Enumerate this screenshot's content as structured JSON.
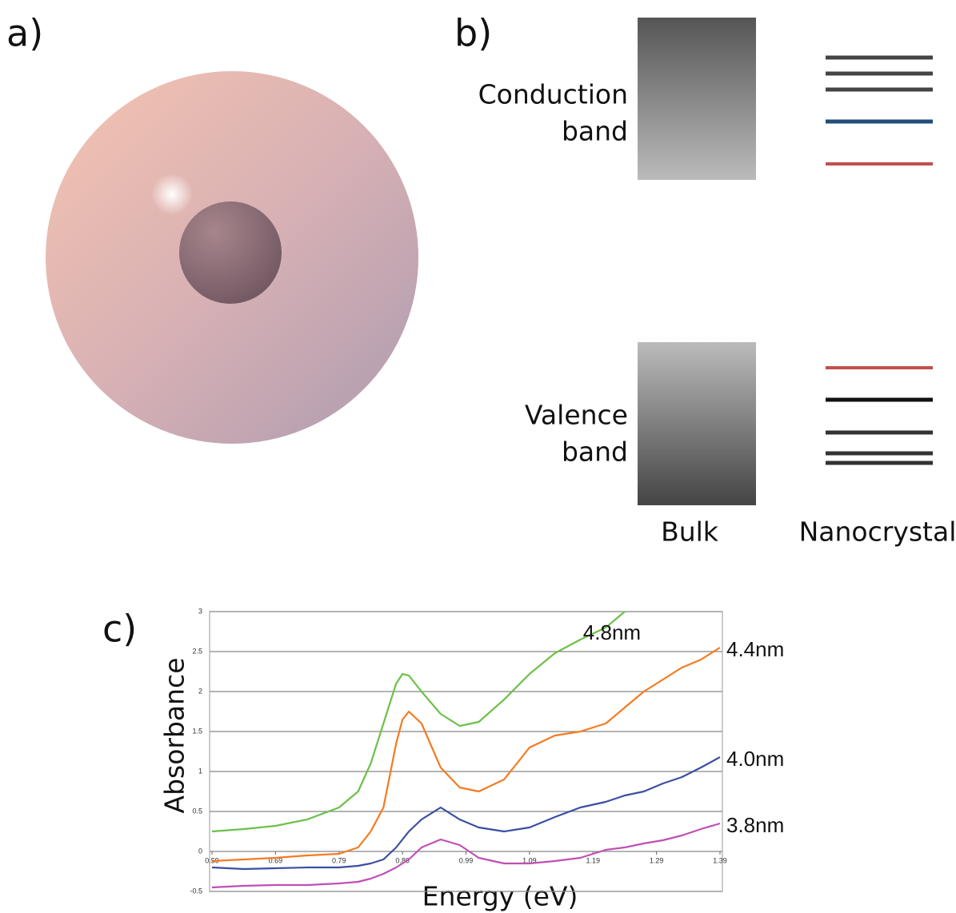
{
  "panels": {
    "a": "a)",
    "b": "b)",
    "c": "c)"
  },
  "diagram": {
    "conduction_label": [
      "Conduction",
      "band"
    ],
    "valence_label": [
      "Valence",
      "band"
    ],
    "bulk_label": "Bulk",
    "nanocrystal_label": "Nanocrystal"
  },
  "chart_data": {
    "type": "line",
    "xlabel": "Energy (eV)",
    "ylabel": "Absorbance",
    "x": [
      0.59,
      0.64,
      0.69,
      0.74,
      0.79,
      0.82,
      0.84,
      0.86,
      0.88,
      0.89,
      0.9,
      0.92,
      0.95,
      0.98,
      1.01,
      1.05,
      1.09,
      1.13,
      1.17,
      1.21,
      1.24,
      1.27,
      1.3,
      1.33,
      1.36,
      1.39
    ],
    "series": [
      {
        "name": "4.8nm",
        "color": "#6cc04a",
        "values": [
          0.25,
          0.28,
          0.32,
          0.4,
          0.55,
          0.75,
          1.1,
          1.6,
          2.1,
          2.22,
          2.2,
          2.0,
          1.72,
          1.57,
          1.62,
          1.9,
          2.22,
          2.48,
          2.65,
          2.8,
          3.0,
          null,
          null,
          null,
          null,
          null
        ]
      },
      {
        "name": "4.4nm",
        "color": "#f47b20",
        "values": [
          -0.12,
          -0.1,
          -0.08,
          -0.05,
          -0.03,
          0.05,
          0.25,
          0.55,
          1.35,
          1.65,
          1.75,
          1.6,
          1.05,
          0.8,
          0.75,
          0.9,
          1.3,
          1.45,
          1.5,
          1.6,
          1.8,
          2.0,
          2.15,
          2.3,
          2.4,
          2.55
        ]
      },
      {
        "name": "4.0nm",
        "color": "#3a4fa3",
        "values": [
          -0.2,
          -0.22,
          -0.21,
          -0.2,
          -0.2,
          -0.18,
          -0.15,
          -0.1,
          0.05,
          0.15,
          0.25,
          0.4,
          0.55,
          0.4,
          0.3,
          0.25,
          0.3,
          0.43,
          0.55,
          0.62,
          0.7,
          0.75,
          0.85,
          0.93,
          1.05,
          1.18
        ]
      },
      {
        "name": "3.8nm",
        "color": "#c04fb5",
        "values": [
          -0.45,
          -0.43,
          -0.42,
          -0.42,
          -0.4,
          -0.38,
          -0.34,
          -0.28,
          -0.2,
          -0.15,
          -0.1,
          0.05,
          0.15,
          0.08,
          -0.08,
          -0.15,
          -0.15,
          -0.12,
          -0.08,
          0.02,
          0.05,
          0.1,
          0.14,
          0.2,
          0.28,
          0.35
        ]
      }
    ],
    "xlim": [
      0.59,
      1.39
    ],
    "xticks": [
      0.59,
      0.69,
      0.79,
      0.89,
      0.99,
      1.09,
      1.19,
      1.29,
      1.39
    ],
    "ylim": [
      -0.5,
      3
    ],
    "yticks": [
      -0.5,
      0,
      0.5,
      1,
      1.5,
      2,
      2.5,
      3
    ],
    "grid": true
  }
}
